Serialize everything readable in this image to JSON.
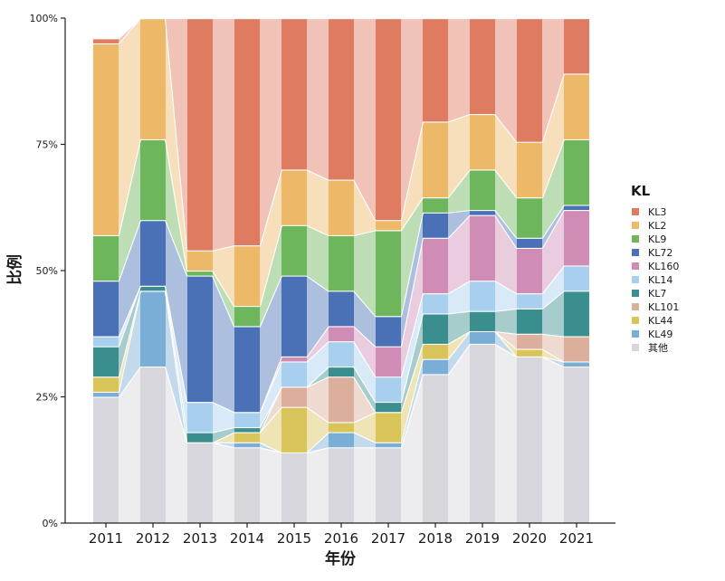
{
  "chart_data": {
    "type": "bar",
    "stacked": true,
    "normalized": true,
    "flow_bands": true,
    "title": "",
    "xlabel": "年份",
    "ylabel": "比例",
    "ylim": [
      0,
      100
    ],
    "yticks": [
      {
        "value": 0,
        "label": "0%"
      },
      {
        "value": 25,
        "label": "25%"
      },
      {
        "value": 50,
        "label": "50%"
      },
      {
        "value": 75,
        "label": "75%"
      },
      {
        "value": 100,
        "label": "100%"
      }
    ],
    "categories": [
      "2011",
      "2012",
      "2013",
      "2014",
      "2015",
      "2016",
      "2017",
      "2018",
      "2019",
      "2020",
      "2021"
    ],
    "legend": {
      "title": "KL",
      "position": "right"
    },
    "series": [
      {
        "name": "其他",
        "color": "#d6d6dc",
        "values": [
          25.0,
          31.0,
          16.0,
          15.0,
          14.0,
          15.0,
          15.0,
          29.5,
          35.5,
          33.0,
          31.0
        ]
      },
      {
        "name": "KL49",
        "color": "#7aaed6",
        "values": [
          1.0,
          15.0,
          0.0,
          1.0,
          0.0,
          3.0,
          1.0,
          3.0,
          2.5,
          0.0,
          1.0
        ]
      },
      {
        "name": "KL44",
        "color": "#d9c45a",
        "values": [
          3.0,
          0.0,
          0.0,
          2.0,
          9.0,
          2.0,
          6.0,
          3.0,
          0.0,
          1.5,
          0.0
        ]
      },
      {
        "name": "KL101",
        "color": "#dcae9c",
        "values": [
          0.0,
          0.0,
          0.0,
          0.0,
          4.0,
          9.0,
          0.0,
          0.0,
          0.0,
          3.0,
          5.0
        ]
      },
      {
        "name": "KL7",
        "color": "#3a8e8e",
        "values": [
          6.0,
          1.0,
          2.0,
          1.0,
          0.0,
          2.0,
          2.0,
          6.0,
          4.0,
          5.0,
          9.0
        ]
      },
      {
        "name": "KL14",
        "color": "#a9cfee",
        "values": [
          2.0,
          0.0,
          6.0,
          3.0,
          5.0,
          5.0,
          5.0,
          4.0,
          6.0,
          3.0,
          5.0
        ]
      },
      {
        "name": "KL160",
        "color": "#cf8db5",
        "values": [
          0.0,
          0.0,
          0.0,
          0.0,
          1.0,
          3.0,
          6.0,
          11.0,
          13.0,
          9.0,
          11.0
        ]
      },
      {
        "name": "KL72",
        "color": "#4a70b6",
        "values": [
          11.0,
          13.0,
          25.0,
          17.0,
          16.0,
          7.0,
          6.0,
          5.0,
          1.0,
          2.0,
          1.0
        ]
      },
      {
        "name": "KL9",
        "color": "#6db65c",
        "values": [
          9.0,
          16.0,
          1.0,
          4.0,
          10.0,
          11.0,
          17.0,
          3.0,
          8.0,
          8.0,
          13.0
        ]
      },
      {
        "name": "KL2",
        "color": "#edb968",
        "values": [
          38.0,
          24.0,
          4.0,
          12.0,
          11.0,
          11.0,
          2.0,
          15.0,
          11.0,
          11.0,
          13.0
        ]
      },
      {
        "name": "KL3",
        "color": "#df7b61",
        "values": [
          1.0,
          0.0,
          46.0,
          45.0,
          30.0,
          32.0,
          40.0,
          20.5,
          19.0,
          24.5,
          11.0
        ]
      }
    ],
    "legend_order": [
      "KL3",
      "KL2",
      "KL9",
      "KL72",
      "KL160",
      "KL14",
      "KL7",
      "KL101",
      "KL44",
      "KL49",
      "其他"
    ]
  }
}
